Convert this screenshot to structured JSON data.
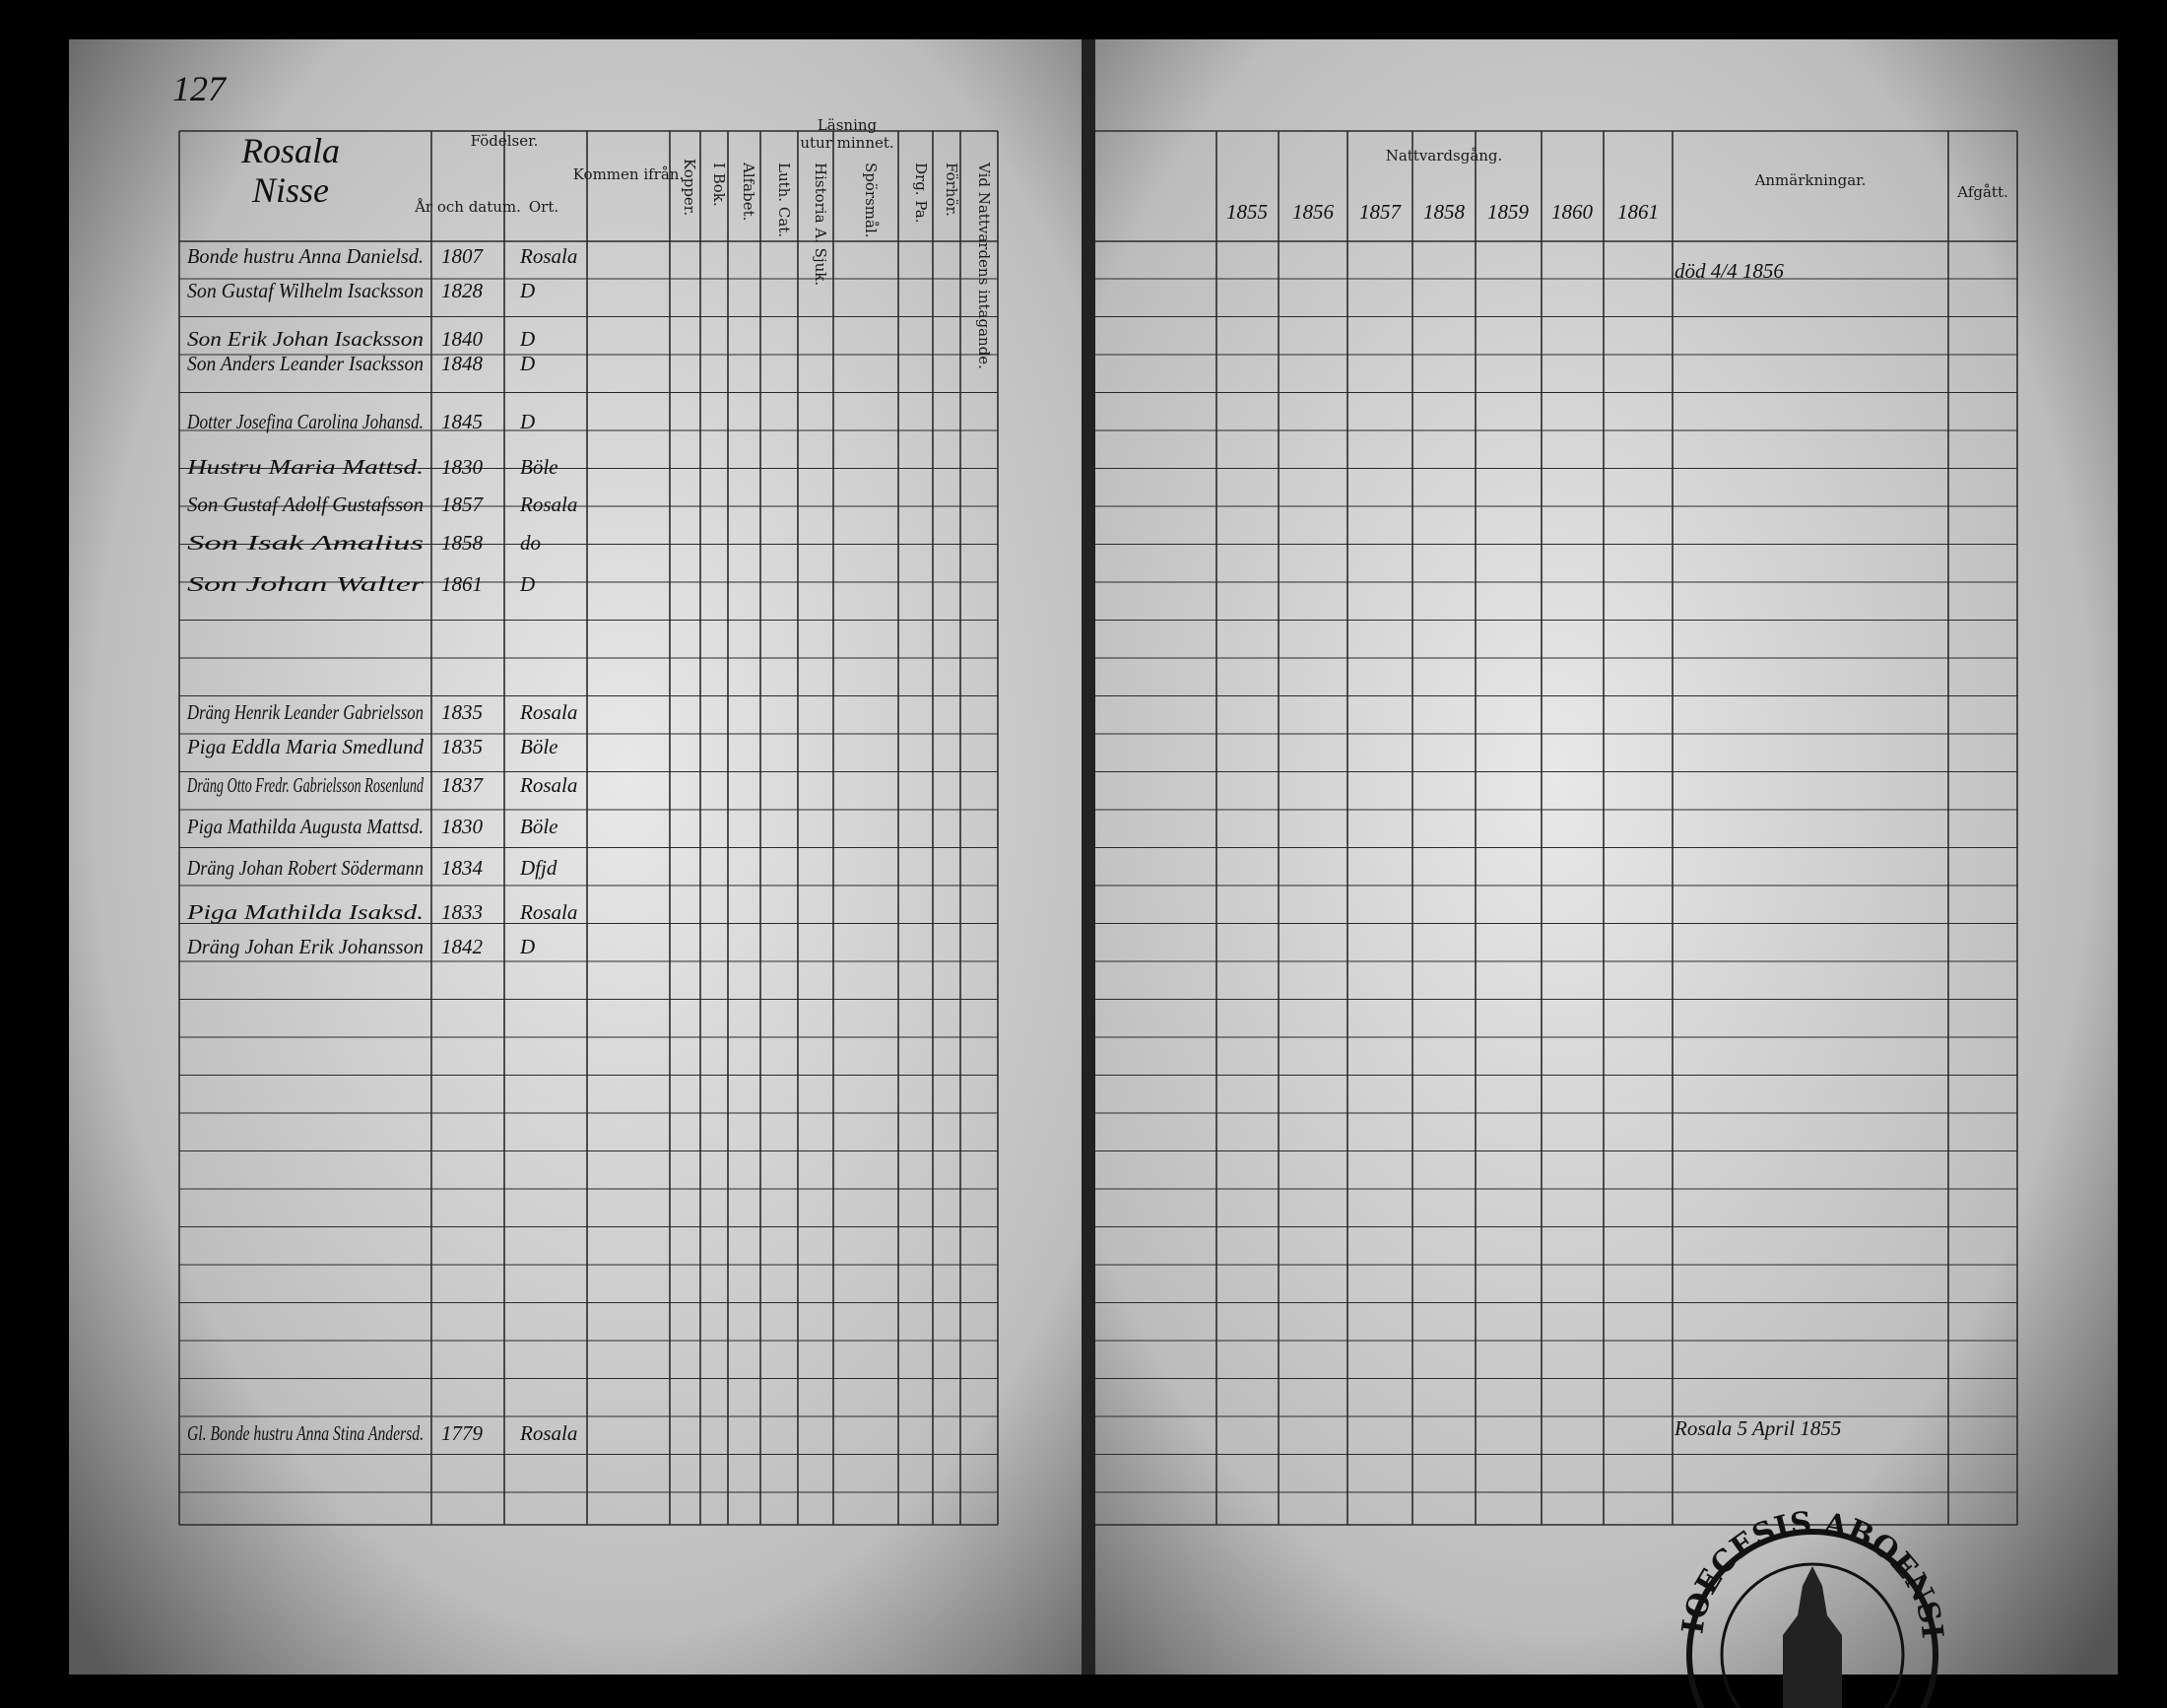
{
  "page_number": "127",
  "left_page": {
    "parish": "Rosala",
    "village": "Nisse",
    "headers": {
      "births": "Födelser.",
      "year_date": "År och datum.",
      "place": "Ort.",
      "came_from": "Kommen ifrån.",
      "smallpox": "Kopper.",
      "reading": "Läsning",
      "by_heart": "utur minnet.",
      "in_book": "I Bok.",
      "alphabet": "Alfabet.",
      "catechism": "Luth. Cat.",
      "history": "Historia A. Sjuk.",
      "questions": "Spörsmål.",
      "drg": "Drg. Pa.",
      "hearing": "Förhör.",
      "communion_first": "Vid Nattvardens intagande."
    },
    "rows": [
      {
        "name": "Bonde hustru Anna Danielsd.",
        "year": "1807",
        "place": "Rosala"
      },
      {
        "name": "Son Gustaf Wilhelm Isacksson",
        "year": "1828",
        "place": "D"
      },
      {
        "name": "Son Erik Johan Isacksson",
        "year": "1840",
        "place": "D"
      },
      {
        "name": "Son Anders Leander Isacksson",
        "year": "1848",
        "place": "D"
      },
      {
        "name": "Dotter Josefina Carolina Johansd.",
        "year": "1845",
        "place": "D"
      },
      {
        "name": "Hustru Maria Mattsd.",
        "year": "1830",
        "place": "Böle"
      },
      {
        "name": "Son Gustaf Adolf Gustafsson",
        "year": "1857",
        "place": "Rosala"
      },
      {
        "name": "Son Isak Amalius",
        "year": "1858",
        "place": "do"
      },
      {
        "name": "Son Johan Walter",
        "year": "1861",
        "place": "D"
      },
      {
        "name": "Dräng Henrik Leander Gabrielsson",
        "year": "1835",
        "place": "Rosala"
      },
      {
        "name": "Piga Eddla Maria Smedlund",
        "year": "1835",
        "place": "Böle"
      },
      {
        "name": "Dräng Otto Fredr. Gabrielsson Rosenlund",
        "year": "1837",
        "place": "Rosala"
      },
      {
        "name": "Piga Mathilda Augusta Mattsd.",
        "year": "1830",
        "place": "Böle"
      },
      {
        "name": "Dräng Johan Robert Södermann",
        "year": "1834",
        "place": "Dfjd"
      },
      {
        "name": "Piga Mathilda Isaksd.",
        "year": "1833",
        "place": "Rosala"
      },
      {
        "name": "Dräng Johan Erik Johansson",
        "year": "1842",
        "place": "D"
      },
      {
        "name": "Gl. Bonde hustru Anna Stina Andersd.",
        "year": "1779",
        "place": "Rosala"
      }
    ]
  },
  "right_page": {
    "communion": "Nattvardsgång.",
    "years": [
      "1855",
      "1856",
      "1857",
      "1858",
      "1859",
      "1860",
      "1861"
    ],
    "remarks": "Anmärkningar.",
    "departed": "Afgått.",
    "notes": [
      "död 4/4 1856",
      "Rosala 5 April 1855"
    ]
  },
  "stamp": "DIOECESIS ABOENSIS"
}
